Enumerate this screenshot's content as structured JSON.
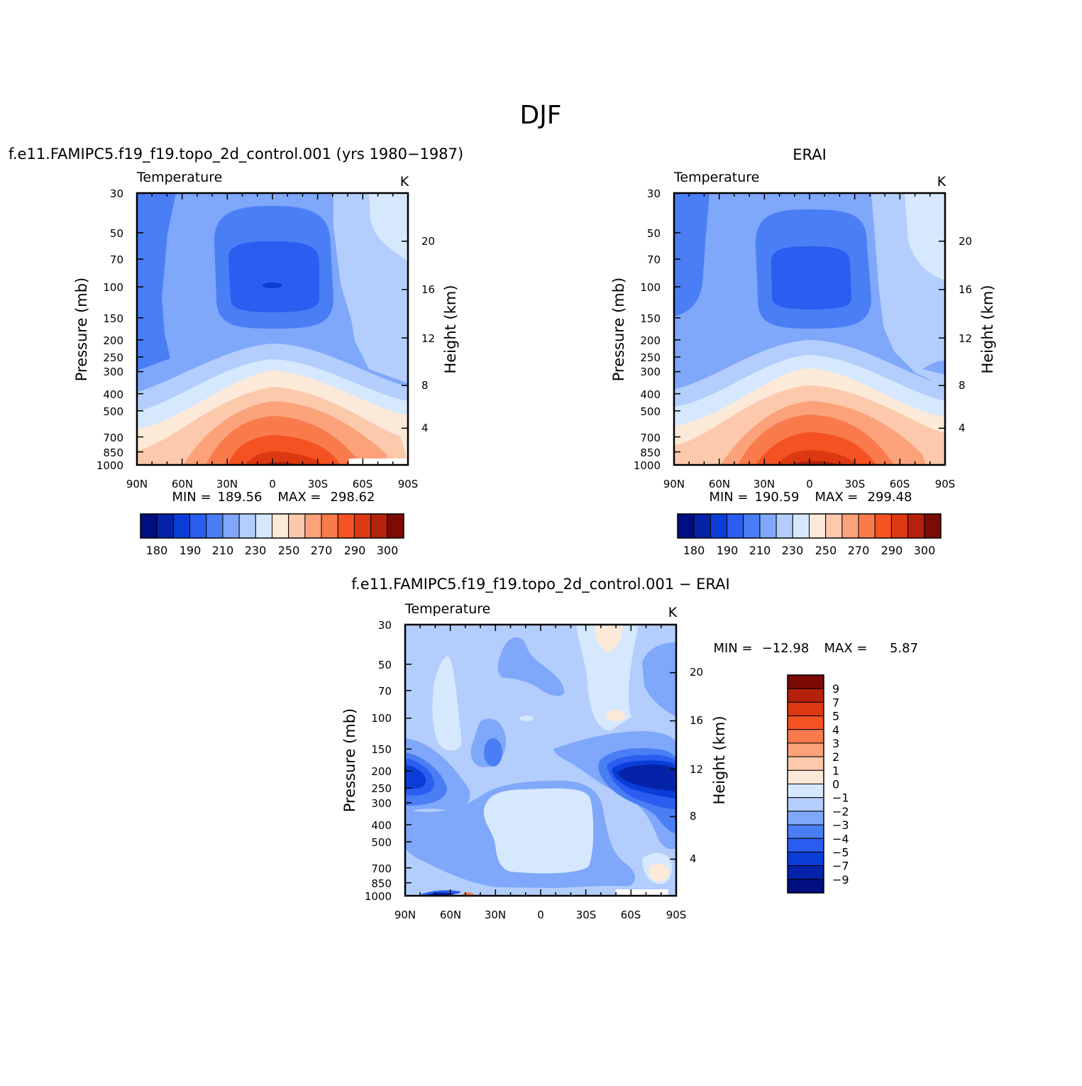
{
  "figure": {
    "title": "DJF"
  },
  "chart_data": [
    {
      "type": "heatmap",
      "id": "model",
      "title": "f.e11.FAMIPC5.f19_f19.topo_2d_control.001 (yrs 1980-1987)",
      "variable": "Temperature",
      "units": "K",
      "ylabel": "Pressure (mb)",
      "ylabel_right": "Height (km)",
      "x_ticks": [
        "90N",
        "60N",
        "30N",
        "0",
        "30S",
        "60S",
        "90S"
      ],
      "y_ticks": [
        "30",
        "50",
        "70",
        "100",
        "150",
        "200",
        "250",
        "300",
        "400",
        "500",
        "700",
        "850",
        "1000"
      ],
      "y_ticks_right": [
        "20",
        "16",
        "12",
        "8",
        "4"
      ],
      "min_label": "MIN =",
      "min_value": "189.56",
      "max_label": "MAX =",
      "max_value": "298.62",
      "colorbar_labels": [
        "180",
        "190",
        "210",
        "230",
        "250",
        "270",
        "290",
        "300"
      ]
    },
    {
      "type": "heatmap",
      "id": "obs",
      "title": "ERAI",
      "variable": "Temperature",
      "units": "K",
      "ylabel": "Pressure (mb)",
      "ylabel_right": "Height (km)",
      "x_ticks": [
        "90N",
        "60N",
        "30N",
        "0",
        "30S",
        "60S",
        "90S"
      ],
      "y_ticks": [
        "30",
        "50",
        "70",
        "100",
        "150",
        "200",
        "250",
        "300",
        "400",
        "500",
        "700",
        "850",
        "1000"
      ],
      "y_ticks_right": [
        "20",
        "16",
        "12",
        "8",
        "4"
      ],
      "min_label": "MIN =",
      "min_value": "190.59",
      "max_label": "MAX =",
      "max_value": "299.48",
      "colorbar_labels": [
        "180",
        "190",
        "210",
        "230",
        "250",
        "270",
        "290",
        "300"
      ]
    },
    {
      "type": "heatmap",
      "id": "diff",
      "title": "f.e11.FAMIPC5.f19_f19.topo_2d_control.001 - ERAI",
      "variable": "Temperature",
      "units": "K",
      "ylabel": "Pressure (mb)",
      "ylabel_right": "Height (km)",
      "x_ticks": [
        "90N",
        "60N",
        "30N",
        "0",
        "30S",
        "60S",
        "90S"
      ],
      "y_ticks": [
        "30",
        "50",
        "70",
        "100",
        "150",
        "200",
        "250",
        "300",
        "400",
        "500",
        "700",
        "850",
        "1000"
      ],
      "y_ticks_right": [
        "20",
        "16",
        "12",
        "8",
        "4"
      ],
      "min_label": "MIN =",
      "min_value": "-12.98",
      "max_label": "MAX =",
      "max_value": "5.87",
      "colorbar_labels": [
        "9",
        "7",
        "5",
        "4",
        "3",
        "2",
        "1",
        "0",
        "-1",
        "-2",
        "-3",
        "-4",
        "-5",
        "-7",
        "-9"
      ]
    }
  ],
  "palettes": {
    "temperature": [
      "#000e80",
      "#0523a9",
      "#0a3dd8",
      "#2b5df0",
      "#4a7ef5",
      "#7fa7fa",
      "#b3cdfc",
      "#d6e8fd",
      "#fde9d8",
      "#fcc9ad",
      "#fba27b",
      "#f97b4c",
      "#f55223",
      "#dc3912",
      "#b5220c",
      "#7c0a05"
    ],
    "difference": [
      "#7c0a05",
      "#b5220c",
      "#dc3912",
      "#f55223",
      "#f97b4c",
      "#fba27b",
      "#fcc9ad",
      "#fde9d8",
      "#d6e8fd",
      "#b3cdfc",
      "#7fa7fa",
      "#4a7ef5",
      "#2b5df0",
      "#0a3dd8",
      "#0523a9",
      "#000e80"
    ]
  }
}
